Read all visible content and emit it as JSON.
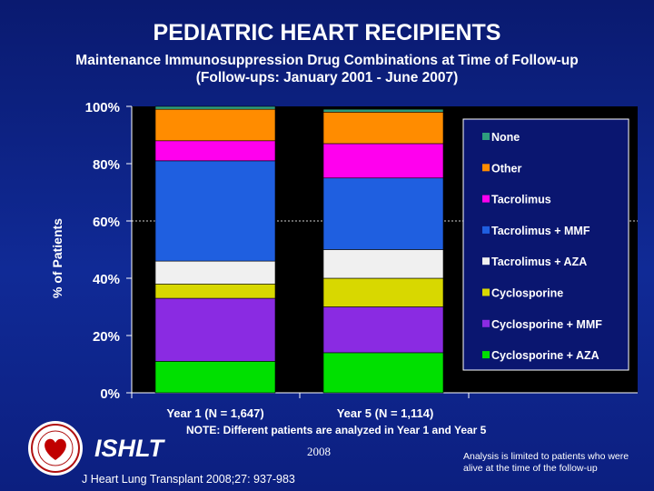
{
  "title": "PEDIATRIC HEART RECIPIENTS",
  "subtitle_line1": "Maintenance Immunosuppression Drug Combinations at Time of Follow-up",
  "subtitle_line2": "(Follow-ups: January 2001 - June 2007)",
  "note": "NOTE: Different patients are analyzed in Year 1 and Year 5",
  "organization": "ISHLT",
  "year": "2008",
  "citation": "J Heart Lung Transplant 2008;27: 937-983",
  "footnote": "Analysis is limited to patients who were alive at the time of the follow-up",
  "colors": {
    "background": "#0d1f7a",
    "plot_area": "#000000",
    "legend_background": "#0a1670"
  },
  "chart_data": {
    "type": "bar",
    "stacked": true,
    "ylabel": "% of Patients",
    "ylim": [
      0,
      100
    ],
    "yticks": [
      0,
      20,
      40,
      60,
      80,
      100
    ],
    "ytick_labels": [
      "0%",
      "20%",
      "40%",
      "60%",
      "80%",
      "100%"
    ],
    "gridline_at": 60,
    "categories": [
      "Year 1 (N = 1,647)",
      "Year 5 (N = 1,114)"
    ],
    "series": [
      {
        "name": "Cyclosporine + AZA",
        "color": "#00e000",
        "values": [
          11,
          14
        ]
      },
      {
        "name": "Cyclosporine + MMF",
        "color": "#8a2be2",
        "values": [
          22,
          16
        ]
      },
      {
        "name": "Cyclosporine",
        "color": "#d8d800",
        "values": [
          5,
          10
        ]
      },
      {
        "name": "Tacrolimus + AZA",
        "color": "#f0f0f0",
        "values": [
          8,
          10
        ]
      },
      {
        "name": "Tacrolimus + MMF",
        "color": "#1f5fe0",
        "values": [
          35,
          25
        ]
      },
      {
        "name": "Tacrolimus",
        "color": "#ff00ee",
        "values": [
          7,
          12
        ]
      },
      {
        "name": "Other",
        "color": "#ff8c00",
        "values": [
          11,
          11
        ]
      },
      {
        "name": "None",
        "color": "#2e9e7e",
        "values": [
          1,
          1
        ]
      }
    ],
    "legend_position": "right"
  }
}
